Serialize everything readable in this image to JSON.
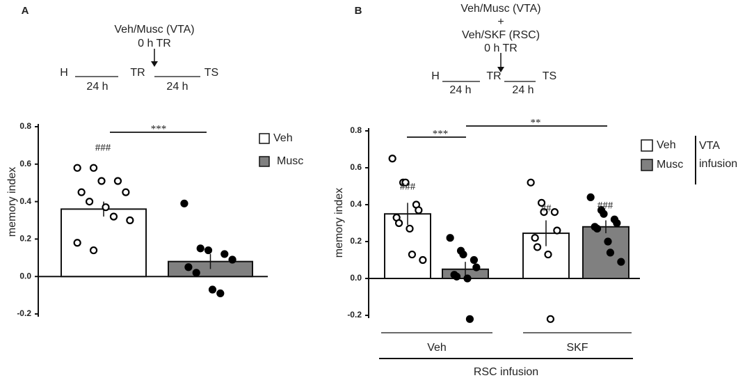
{
  "chart_data": [
    {
      "type": "bar",
      "panel": "A",
      "timeline": [
        "Veh/Musc (VTA)",
        "0 h TR",
        "H",
        "24 h",
        "TR",
        "24 h",
        "TS"
      ],
      "ylabel": "memory index",
      "categories": [
        null
      ],
      "series": [
        {
          "name": "Veh",
          "color": "#ffffff",
          "values": [
            0.36
          ],
          "errors": [
            0.04
          ],
          "points": [
            [
              0.58,
              0.58,
              0.51,
              0.51,
              0.45,
              0.45,
              0.4,
              0.37,
              0.32,
              0.3,
              0.18,
              0.14
            ]
          ]
        },
        {
          "name": "Musc",
          "color": "#808080",
          "values": [
            0.08
          ],
          "errors": [
            0.04
          ],
          "points": [
            [
              0.39,
              0.15,
              0.14,
              0.12,
              0.09,
              0.05,
              0.02,
              -0.07,
              -0.09
            ]
          ]
        }
      ],
      "annotations": [
        "###",
        "***"
      ],
      "ylim": [
        -0.2,
        0.8
      ],
      "yticks": [
        -0.2,
        {
          "value": 0,
          "label": "0.0"
        },
        0.2,
        0.4,
        0.6,
        0.8
      ]
    },
    {
      "type": "bar",
      "panel": "B",
      "timeline": [
        "Veh/Musc (VTA)",
        "+",
        "Veh/SKF (RSC)",
        "0 h TR",
        "H",
        "24 h",
        "TR",
        "24 h",
        "TS"
      ],
      "ylabel": "memory index",
      "xlabel": "RSC infusion",
      "legend_title": [
        "VTA",
        "infusion"
      ],
      "categories": [
        "Veh",
        "SKF"
      ],
      "series": [
        {
          "name": "Veh",
          "color": "#ffffff",
          "values": [
            0.35,
            0.245
          ],
          "errors": [
            0.06,
            0.07
          ],
          "points": [
            [
              0.65,
              0.52,
              0.52,
              0.4,
              0.37,
              0.33,
              0.3,
              0.27,
              0.13,
              0.1
            ],
            [
              0.52,
              0.41,
              0.36,
              0.36,
              0.26,
              0.22,
              0.17,
              0.13,
              -0.22
            ]
          ]
        },
        {
          "name": "Musc",
          "color": "#808080",
          "values": [
            0.05,
            0.28
          ],
          "errors": [
            0.04,
            0.035
          ],
          "points": [
            [
              0.22,
              0.15,
              0.13,
              0.1,
              0.06,
              0.02,
              0.01,
              0.0,
              -0.22
            ],
            [
              0.44,
              0.37,
              0.35,
              0.32,
              0.3,
              0.28,
              0.27,
              0.2,
              0.14,
              0.09
            ]
          ]
        }
      ],
      "annotations": [
        "###",
        "***",
        "**",
        "##",
        "###"
      ],
      "ylim": [
        -0.2,
        0.8
      ],
      "yticks": [
        -0.2,
        {
          "value": 0,
          "label": "0.0"
        },
        0.2,
        0.4,
        0.6,
        0.8
      ]
    }
  ]
}
